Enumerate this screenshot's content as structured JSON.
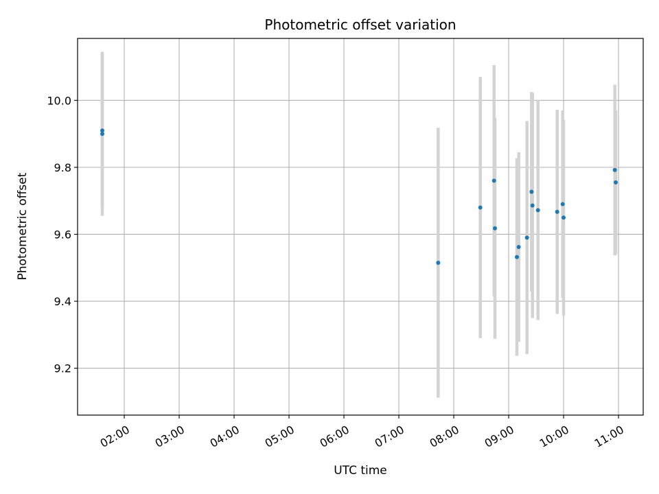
{
  "chart_data": {
    "type": "scatter",
    "title": "Photometric offset variation",
    "xlabel": "UTC time",
    "ylabel": "Photometric offset",
    "grid": true,
    "xlim_hours": [
      1.15,
      11.45
    ],
    "ylim": [
      9.06,
      10.185
    ],
    "x_ticks": [
      {
        "hour": 2,
        "label": "02:00"
      },
      {
        "hour": 3,
        "label": "03:00"
      },
      {
        "hour": 4,
        "label": "04:00"
      },
      {
        "hour": 5,
        "label": "05:00"
      },
      {
        "hour": 6,
        "label": "06:00"
      },
      {
        "hour": 7,
        "label": "07:00"
      },
      {
        "hour": 8,
        "label": "08:00"
      },
      {
        "hour": 9,
        "label": "09:00"
      },
      {
        "hour": 10,
        "label": "10:00"
      },
      {
        "hour": 11,
        "label": "11:00"
      }
    ],
    "y_ticks": [
      {
        "value": 9.2,
        "label": "9.2"
      },
      {
        "value": 9.4,
        "label": "9.4"
      },
      {
        "value": 9.6,
        "label": "9.6"
      },
      {
        "value": 9.8,
        "label": "9.8"
      },
      {
        "value": 10.0,
        "label": "10.0"
      }
    ],
    "point_color": "#1f77b4",
    "errorbar_color": "#d3d3d3",
    "points": [
      {
        "time": "01:36",
        "y": 9.91,
        "err": 0.23
      },
      {
        "time": "01:36",
        "y": 9.9,
        "err": 0.245
      },
      {
        "time": "07:43",
        "y": 9.515,
        "err": 0.403
      },
      {
        "time": "08:29",
        "y": 9.68,
        "err": 0.39
      },
      {
        "time": "08:44",
        "y": 9.76,
        "err": 0.345
      },
      {
        "time": "08:45",
        "y": 9.618,
        "err": 0.33
      },
      {
        "time": "09:09",
        "y": 9.532,
        "err": 0.295
      },
      {
        "time": "09:11",
        "y": 9.562,
        "err": 0.283
      },
      {
        "time": "09:20",
        "y": 9.59,
        "err": 0.348
      },
      {
        "time": "09:25",
        "y": 9.727,
        "err": 0.298
      },
      {
        "time": "09:26",
        "y": 9.686,
        "err": 0.336
      },
      {
        "time": "09:32",
        "y": 9.672,
        "err": 0.328
      },
      {
        "time": "09:53",
        "y": 9.667,
        "err": 0.305
      },
      {
        "time": "09:59",
        "y": 9.69,
        "err": 0.28
      },
      {
        "time": "10:00",
        "y": 9.65,
        "err": 0.292
      },
      {
        "time": "10:56",
        "y": 9.792,
        "err": 0.255
      },
      {
        "time": "10:57",
        "y": 9.755,
        "err": 0.215
      }
    ]
  }
}
